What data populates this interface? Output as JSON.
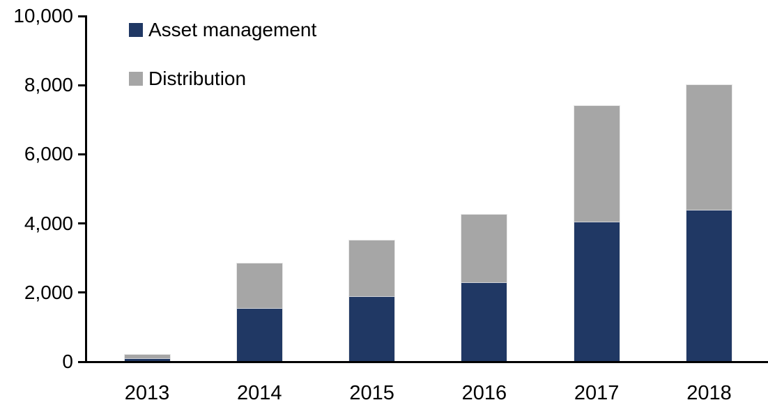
{
  "chart_data": {
    "type": "bar",
    "stacked": true,
    "title": "",
    "xlabel": "",
    "ylabel": "",
    "categories": [
      "2013",
      "2014",
      "2015",
      "2016",
      "2017",
      "2018"
    ],
    "series": [
      {
        "name": "Asset management",
        "color": "#203864",
        "values": [
          100,
          1550,
          1900,
          2300,
          4050,
          4400
        ]
      },
      {
        "name": "Distribution",
        "color": "#A6A6A6",
        "values": [
          100,
          1300,
          1600,
          1950,
          3350,
          3600
        ]
      }
    ],
    "totals": [
      200,
      2850,
      3500,
      4250,
      7400,
      8000
    ],
    "ylim": [
      0,
      10000
    ],
    "y_ticks": [
      {
        "value": 0,
        "label": "0"
      },
      {
        "value": 2000,
        "label": "2,000"
      },
      {
        "value": 4000,
        "label": "4,000"
      },
      {
        "value": 6000,
        "label": "6,000"
      },
      {
        "value": 8000,
        "label": "8,000"
      },
      {
        "value": 10000,
        "label": "10,000"
      }
    ],
    "grid": false,
    "legend_position": "top-left-inside",
    "axis_color": "#000000",
    "background_color": "#FFFFFF"
  }
}
